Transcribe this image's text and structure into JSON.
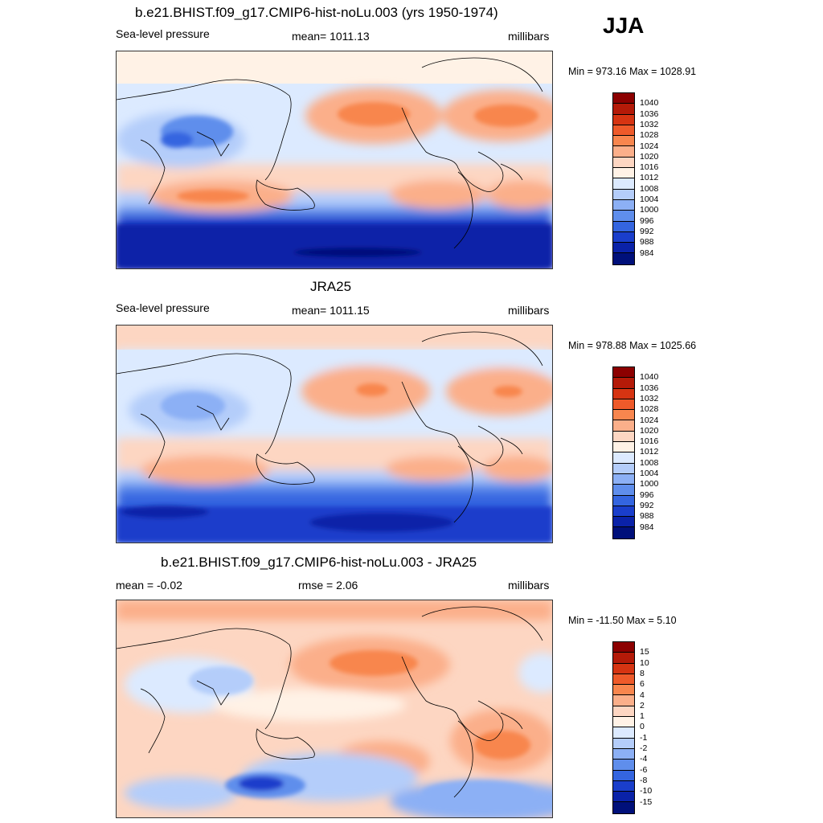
{
  "season": "JJA",
  "panels": [
    {
      "title": "b.e21.BHIST.f09_g17.CMIP6-hist-noLu.003 (yrs 1950-1974)",
      "left_label": "Sea-level pressure",
      "center_label": "mean= 1011.13",
      "right_label": "millibars",
      "minmax": "Min = 973.16 Max = 1028.91",
      "colorbar": {
        "labels": [
          "1040",
          "1036",
          "1032",
          "1028",
          "1024",
          "1020",
          "1016",
          "1012",
          "1008",
          "1004",
          "1000",
          "996",
          "992",
          "988",
          "984"
        ],
        "colors": [
          "#8c0000",
          "#b41a08",
          "#d63412",
          "#ee5a2a",
          "#f8864e",
          "#fbaf8a",
          "#fdd6c2",
          "#fff2e6",
          "#dceaff",
          "#b4cdfa",
          "#8cb0f5",
          "#5f8eec",
          "#3465e0",
          "#1a3ecb",
          "#0a22a8",
          "#00107a"
        ]
      },
      "map_features": [
        "North Pacific high",
        "Azores high",
        "South Indian high",
        "South Pacific high",
        "South Atlantic high",
        "Asian low",
        "Southern Ocean trough"
      ]
    },
    {
      "title": "JRA25",
      "left_label": "Sea-level pressure",
      "center_label": "mean= 1011.15",
      "right_label": "millibars",
      "minmax": "Min = 978.88 Max = 1025.66",
      "colorbar": {
        "labels": [
          "1040",
          "1036",
          "1032",
          "1028",
          "1024",
          "1020",
          "1016",
          "1012",
          "1008",
          "1004",
          "1000",
          "996",
          "992",
          "988",
          "984"
        ],
        "colors": [
          "#8c0000",
          "#b41a08",
          "#d63412",
          "#ee5a2a",
          "#f8864e",
          "#fbaf8a",
          "#fdd6c2",
          "#fff2e6",
          "#dceaff",
          "#b4cdfa",
          "#8cb0f5",
          "#5f8eec",
          "#3465e0",
          "#1a3ecb",
          "#0a22a8",
          "#00107a"
        ]
      }
    },
    {
      "title": "b.e21.BHIST.f09_g17.CMIP6-hist-noLu.003 - JRA25",
      "left_label": "mean =  -0.02",
      "center_label": "rmse =   2.06",
      "right_label": "millibars",
      "minmax": "Min = -11.50 Max =   5.10",
      "colorbar": {
        "labels": [
          "15",
          "10",
          "8",
          "6",
          "4",
          "2",
          "1",
          "0",
          "-1",
          "-2",
          "-4",
          "-6",
          "-8",
          "-10",
          "-15"
        ],
        "colors": [
          "#8c0000",
          "#b41a08",
          "#d63412",
          "#ee5a2a",
          "#f8864e",
          "#fbaf8a",
          "#fdd6c2",
          "#fff2e6",
          "#dceaff",
          "#b4cdfa",
          "#8cb0f5",
          "#5f8eec",
          "#3465e0",
          "#1a3ecb",
          "#0a22a8",
          "#00107a"
        ]
      }
    }
  ]
}
